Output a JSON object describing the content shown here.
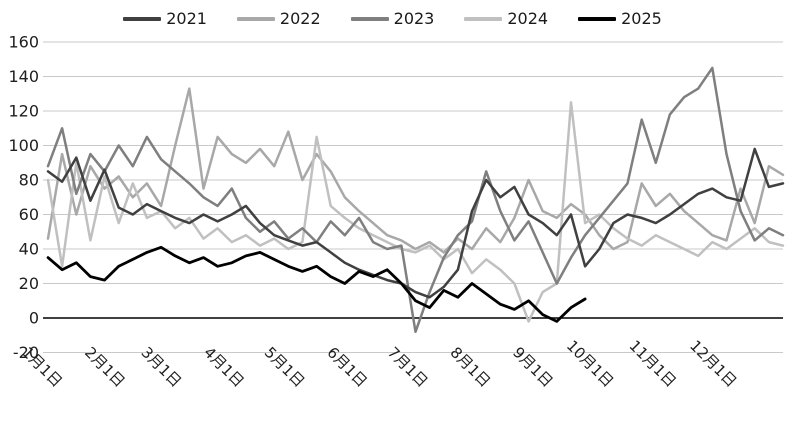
{
  "chart_data": {
    "type": "line",
    "title": "",
    "xlabel": "",
    "ylabel": "",
    "grid": "horizontal-only",
    "legend_position": "top-center",
    "background": "#ffffff",
    "gridline_color": "#c9c9c9",
    "zero_axis_color": "#000000",
    "tick_label_color": "#1f1f1f",
    "y_axis": {
      "range": [
        -20,
        160
      ],
      "tick_step": 20,
      "ticks": [
        160,
        140,
        120,
        100,
        80,
        60,
        40,
        20,
        0,
        -20
      ]
    },
    "x_axis": {
      "tick_labels": [
        "1月1日",
        "2月1日",
        "3月1日",
        "4月1日",
        "5月1日",
        "6月1日",
        "7月1日",
        "8月1日",
        "9月1日",
        "10月1日",
        "11月1日",
        "12月1日"
      ],
      "tick_day_offsets": [
        0,
        31,
        59,
        90,
        120,
        151,
        181,
        212,
        243,
        273,
        304,
        334
      ],
      "days_in_year": 365,
      "label_rotation_deg": 45
    },
    "sampling_note": "values sampled weekly; day_of_year = index * 7 (Jan 1 = 0); estimated from chart",
    "series": [
      {
        "name": "2021",
        "color": "#404040",
        "values": [
          85,
          79,
          93,
          68,
          86,
          64,
          60,
          66,
          62,
          58,
          55,
          60,
          56,
          60,
          65,
          55,
          48,
          45,
          42,
          44,
          38,
          32,
          28,
          25,
          22,
          20,
          15,
          12,
          18,
          28,
          62,
          80,
          70,
          76,
          60,
          55,
          48,
          60,
          30,
          40,
          55,
          60,
          58,
          55,
          60,
          66,
          72,
          75,
          70,
          68,
          98,
          76,
          78
        ]
      },
      {
        "name": "2022",
        "color": "#a8a8a8",
        "values": [
          46,
          95,
          60,
          88,
          75,
          82,
          70,
          78,
          65,
          100,
          133,
          75,
          105,
          95,
          90,
          98,
          88,
          108,
          80,
          95,
          85,
          70,
          62,
          55,
          48,
          45,
          40,
          44,
          38,
          46,
          40,
          52,
          44,
          58,
          80,
          62,
          58,
          66,
          60,
          48,
          40,
          44,
          78,
          65,
          72,
          62,
          55,
          48,
          45,
          75,
          55,
          88,
          83
        ]
      },
      {
        "name": "2023",
        "color": "#7f7f7f",
        "values": [
          88,
          110,
          72,
          95,
          85,
          100,
          88,
          105,
          92,
          85,
          78,
          70,
          65,
          75,
          58,
          50,
          56,
          46,
          52,
          44,
          56,
          48,
          58,
          44,
          40,
          42,
          -8,
          15,
          35,
          48,
          56,
          85,
          62,
          45,
          56,
          38,
          20,
          35,
          48,
          58,
          68,
          78,
          115,
          90,
          118,
          128,
          133,
          145,
          95,
          62,
          45,
          52,
          48
        ]
      },
      {
        "name": "2024",
        "color": "#c0c0c0",
        "values": [
          80,
          30,
          90,
          45,
          82,
          55,
          78,
          58,
          62,
          52,
          58,
          46,
          52,
          44,
          48,
          42,
          46,
          40,
          44,
          105,
          65,
          58,
          52,
          48,
          44,
          40,
          38,
          42,
          34,
          40,
          26,
          34,
          28,
          20,
          -2,
          15,
          20,
          125,
          55,
          60,
          52,
          46,
          42,
          48,
          44,
          40,
          36,
          44,
          40,
          46,
          52,
          44,
          42
        ]
      },
      {
        "name": "2025",
        "color": "#000000",
        "values": [
          35,
          28,
          32,
          24,
          22,
          30,
          34,
          38,
          41,
          36,
          32,
          35,
          30,
          32,
          36,
          38,
          34,
          30,
          27,
          30,
          24,
          20,
          27,
          24,
          28,
          20,
          10,
          6,
          16,
          12,
          20,
          14,
          8,
          5,
          10,
          2,
          -2,
          6,
          11
        ]
      }
    ]
  }
}
